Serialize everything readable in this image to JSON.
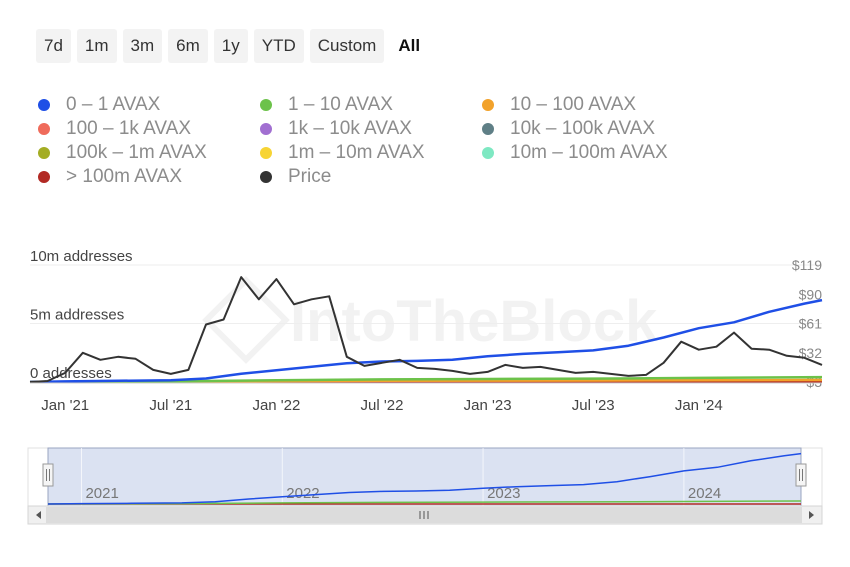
{
  "range_selector": {
    "buttons": [
      "7d",
      "1m",
      "3m",
      "6m",
      "1y",
      "YTD",
      "Custom",
      "All"
    ],
    "active": "All"
  },
  "legend": [
    {
      "label": "0 – 1 AVAX",
      "color": "#1f4fe6"
    },
    {
      "label": "1 – 10 AVAX",
      "color": "#6cc24a"
    },
    {
      "label": "10 – 100 AVAX",
      "color": "#f2a22b"
    },
    {
      "label": "100 – 1k AVAX",
      "color": "#ef6b5b"
    },
    {
      "label": "1k – 10k AVAX",
      "color": "#a16fd1"
    },
    {
      "label": "10k – 100k AVAX",
      "color": "#5f7f86"
    },
    {
      "label": "100k – 1m AVAX",
      "color": "#a4ad23"
    },
    {
      "label": "1m – 10m AVAX",
      "color": "#f7d434"
    },
    {
      "label": "10m – 100m AVAX",
      "color": "#7ee8c2"
    },
    {
      "label": "> 100m AVAX",
      "color": "#b22a24"
    },
    {
      "label": "Price",
      "color": "#333333"
    }
  ],
  "watermark": "IntoTheBlock",
  "chart_data": {
    "type": "line",
    "x_ticks": [
      "Jan '21",
      "Jul '21",
      "Jan '22",
      "Jul '22",
      "Jan '23",
      "Jul '23",
      "Jan '24"
    ],
    "y_left_ticks": [
      "0 addresses",
      "5m addresses",
      "10m addresses"
    ],
    "y_left_range": [
      0,
      10000000
    ],
    "y_right_ticks": [
      "$3",
      "$32",
      "$61",
      "$90",
      "$119"
    ],
    "y_right_range": [
      3,
      119
    ],
    "x_range": [
      "2020-11",
      "2024-08"
    ],
    "navigator_labels": [
      "2021",
      "2022",
      "2023",
      "2024"
    ],
    "series": [
      {
        "name": "0 – 1 AVAX",
        "axis": "left",
        "color": "#1f4fe6",
        "points": [
          [
            "2020-11",
            0
          ],
          [
            "2021-01",
            50000
          ],
          [
            "2021-04",
            100000
          ],
          [
            "2021-07",
            150000
          ],
          [
            "2021-09",
            300000
          ],
          [
            "2021-11",
            700000
          ],
          [
            "2022-01",
            1000000
          ],
          [
            "2022-03",
            1300000
          ],
          [
            "2022-05",
            1600000
          ],
          [
            "2022-07",
            1750000
          ],
          [
            "2022-09",
            1800000
          ],
          [
            "2022-11",
            1900000
          ],
          [
            "2023-01",
            2200000
          ],
          [
            "2023-03",
            2400000
          ],
          [
            "2023-05",
            2550000
          ],
          [
            "2023-07",
            2700000
          ],
          [
            "2023-09",
            3100000
          ],
          [
            "2023-11",
            3800000
          ],
          [
            "2024-01",
            4600000
          ],
          [
            "2024-03",
            5100000
          ],
          [
            "2024-05",
            6000000
          ],
          [
            "2024-07",
            6700000
          ],
          [
            "2024-08",
            7000000
          ]
        ]
      },
      {
        "name": "1 – 10 AVAX",
        "axis": "left",
        "color": "#6cc24a",
        "points": [
          [
            "2020-11",
            0
          ],
          [
            "2021-07",
            50000
          ],
          [
            "2022-01",
            150000
          ],
          [
            "2022-07",
            220000
          ],
          [
            "2023-01",
            260000
          ],
          [
            "2023-07",
            290000
          ],
          [
            "2024-01",
            350000
          ],
          [
            "2024-08",
            420000
          ]
        ]
      },
      {
        "name": "10 – 100 AVAX",
        "axis": "left",
        "color": "#f2a22b",
        "points": [
          [
            "2020-11",
            0
          ],
          [
            "2021-07",
            20000
          ],
          [
            "2022-01",
            80000
          ],
          [
            "2022-07",
            110000
          ],
          [
            "2023-01",
            120000
          ],
          [
            "2023-07",
            130000
          ],
          [
            "2024-01",
            150000
          ],
          [
            "2024-08",
            170000
          ]
        ]
      },
      {
        "name": "> 100m AVAX",
        "axis": "left",
        "color": "#b22a24",
        "points": [
          [
            "2020-11",
            0
          ],
          [
            "2024-08",
            0
          ]
        ]
      },
      {
        "name": "Price",
        "axis": "right",
        "color": "#333333",
        "points": [
          [
            "2020-11",
            3
          ],
          [
            "2020-12",
            4
          ],
          [
            "2021-01",
            12
          ],
          [
            "2021-02",
            32
          ],
          [
            "2021-03",
            25
          ],
          [
            "2021-04",
            28
          ],
          [
            "2021-05",
            26
          ],
          [
            "2021-06",
            15
          ],
          [
            "2021-07",
            11
          ],
          [
            "2021-08",
            15
          ],
          [
            "2021-09",
            60
          ],
          [
            "2021-10",
            65
          ],
          [
            "2021-11",
            107
          ],
          [
            "2021-12",
            85
          ],
          [
            "2022-01",
            105
          ],
          [
            "2022-02",
            80
          ],
          [
            "2022-03",
            85
          ],
          [
            "2022-04",
            88
          ],
          [
            "2022-05",
            28
          ],
          [
            "2022-06",
            19
          ],
          [
            "2022-07",
            22
          ],
          [
            "2022-08",
            25
          ],
          [
            "2022-09",
            17
          ],
          [
            "2022-10",
            16
          ],
          [
            "2022-11",
            14
          ],
          [
            "2022-12",
            11
          ],
          [
            "2023-01",
            13
          ],
          [
            "2023-02",
            20
          ],
          [
            "2023-03",
            17
          ],
          [
            "2023-04",
            18
          ],
          [
            "2023-05",
            15
          ],
          [
            "2023-06",
            12
          ],
          [
            "2023-07",
            13
          ],
          [
            "2023-08",
            11
          ],
          [
            "2023-09",
            9
          ],
          [
            "2023-10",
            10
          ],
          [
            "2023-11",
            22
          ],
          [
            "2023-12",
            43
          ],
          [
            "2024-01",
            35
          ],
          [
            "2024-02",
            38
          ],
          [
            "2024-03",
            52
          ],
          [
            "2024-04",
            36
          ],
          [
            "2024-05",
            35
          ],
          [
            "2024-06",
            29
          ],
          [
            "2024-07",
            27
          ],
          [
            "2024-08",
            20
          ]
        ]
      }
    ]
  }
}
